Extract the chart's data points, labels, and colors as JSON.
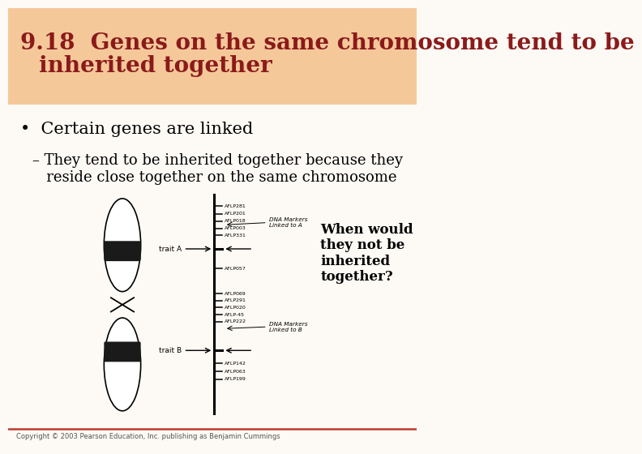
{
  "title_line1": "9.18  Genes on the same chromosome tend to be",
  "title_line2": "inherited together",
  "title_bg_color": "#F5C89A",
  "title_text_color": "#8B1A1A",
  "title_fontsize": 20,
  "bullet_text": "Certain genes are linked",
  "sub_bullet_text": "– They tend to be inherited together because they\n   reside close together on the same chromosome",
  "annotation_text": "When would\nthey not be\ninherited\ntogether?",
  "copyright_text": "Copyright © 2003 Pearson Education, Inc. publishing as Benjamin Cummings",
  "bg_color": "#FDFAF5",
  "bottom_line_color": "#C0392B",
  "marker_labels_top": [
    "AFLP281",
    "AFLP201",
    "AFLP018",
    "AFLP003",
    "AFLP331"
  ],
  "marker_labels_middle": [
    "AFLP057"
  ],
  "marker_labels_lower": [
    "AFLP069",
    "AFLP291",
    "AFLP020",
    "AFLP-45",
    "AFLP222"
  ],
  "marker_labels_bottom": [
    "AFLP142",
    "AFLP063",
    "AFLP199"
  ],
  "dna_marker_a": "DNA Markers\nLinked to A",
  "dna_marker_b": "DNA Markers\nLinked to B",
  "trait_a_label": "trait A",
  "trait_b_label": "trait B"
}
